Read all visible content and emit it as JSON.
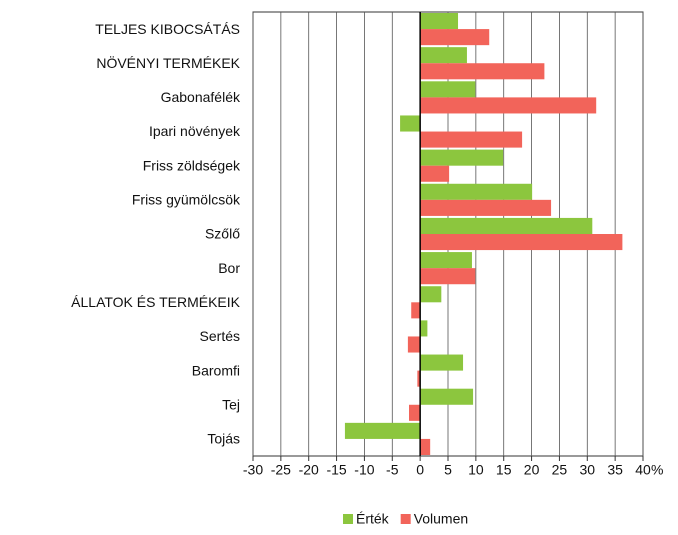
{
  "chart_data": {
    "type": "hbar",
    "categories": [
      "TELJES KIBOCSÁTÁS",
      "NÖVÉNYI TERMÉKEK",
      "Gabonafélék",
      "Ipari növények",
      "Friss zöldségek",
      "Friss gyümölcsök",
      "Szőlő",
      "Bor",
      "ÁLLATOK ÉS TERMÉKEIK",
      "Sertés",
      "Baromfi",
      "Tej",
      "Tojás"
    ],
    "series": [
      {
        "name": "Érték",
        "color": "#8cc63e",
        "values": [
          6.8,
          8.4,
          9.9,
          -3.6,
          14.9,
          20.1,
          30.9,
          9.3,
          3.8,
          1.3,
          7.7,
          9.5,
          -13.5
        ]
      },
      {
        "name": "Volumen",
        "color": "#f2645a",
        "values": [
          12.4,
          22.3,
          31.6,
          18.3,
          5.2,
          23.5,
          36.3,
          9.9,
          -1.6,
          -2.2,
          -0.5,
          -2.0,
          1.8
        ]
      }
    ],
    "xlim": [
      -30,
      40
    ],
    "xticks": [
      -30,
      -25,
      -20,
      -15,
      -10,
      -5,
      0,
      5,
      10,
      15,
      20,
      25,
      30,
      35,
      40
    ],
    "x_unit": "%",
    "grid": true,
    "legend": "bottom"
  }
}
